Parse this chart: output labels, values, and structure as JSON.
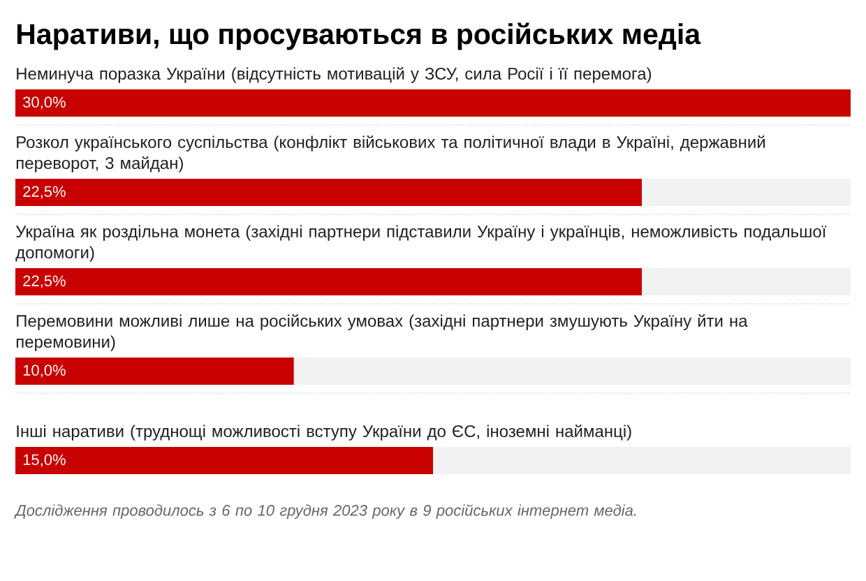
{
  "chart_data": {
    "type": "bar",
    "orientation": "horizontal",
    "title": "Наративи, що просуваються в російських медіа",
    "categories": [
      "Неминуча поразка України (відсутність мотивацій у ЗСУ, сила Росії і її перемога)",
      "Розкол українського суспільства (конфлікт військових та політичної влади в Україні, державний переворот, 3 майдан)",
      "Україна як роздільна монета (західні партнери підставили Україну і українців, неможливість подальшої допомоги)",
      "Перемовини можливі лише на російських умовах (західні партнери змушують Україну йти на перемовини)",
      "Інші наративи (труднощі можливості вступу України до ЄС, іноземні найманці)"
    ],
    "values": [
      30.0,
      22.5,
      22.5,
      10.0,
      15.0
    ],
    "value_labels": [
      "30,0%",
      "22,5%",
      "22,5%",
      "10,0%",
      "15,0%"
    ],
    "color": "#c80000",
    "xlim": [
      0,
      30
    ],
    "grid": "y",
    "tick_labels": "y",
    "annotations": [
      "Дослідження проводилось з 6 по 10 грудня 2023 року в 9 російських інтернет медіа."
    ]
  }
}
